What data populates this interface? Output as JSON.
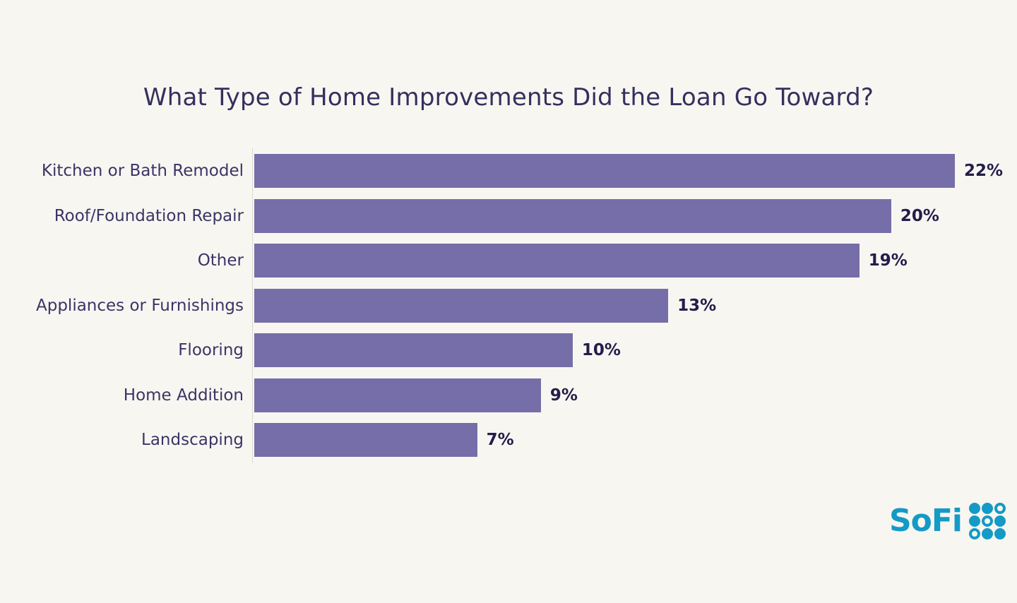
{
  "title": "What Type of Home Improvements Did the Loan Go Toward?",
  "chart_data": {
    "type": "bar",
    "orientation": "horizontal",
    "title": "What Type of Home Improvements Did the Loan Go Toward?",
    "categories": [
      "Kitchen or Bath Remodel",
      "Roof/Foundation Repair",
      "Other",
      "Appliances or Furnishings",
      "Flooring",
      "Home Addition",
      "Landscaping"
    ],
    "values": [
      22,
      20,
      19,
      13,
      10,
      9,
      7
    ],
    "value_labels": [
      "22%",
      "20%",
      "19%",
      "13%",
      "10%",
      "9%",
      "7%"
    ],
    "unit": "percent",
    "xlim": [
      0,
      22
    ],
    "grid": false,
    "legend": false,
    "value_label_position": "end-of-bar"
  },
  "colors": {
    "background": "#F8F6F1",
    "bar": "#766EA8",
    "title": "#34305E",
    "label": "#3A3566",
    "value": "#221D49",
    "axis": "#DED9CF",
    "logo": "#149AC6"
  },
  "logo": {
    "text": "SoFi",
    "dot_pattern": [
      "filled",
      "filled",
      "outline",
      "filled",
      "outline",
      "filled",
      "outline",
      "filled",
      "filled"
    ]
  }
}
